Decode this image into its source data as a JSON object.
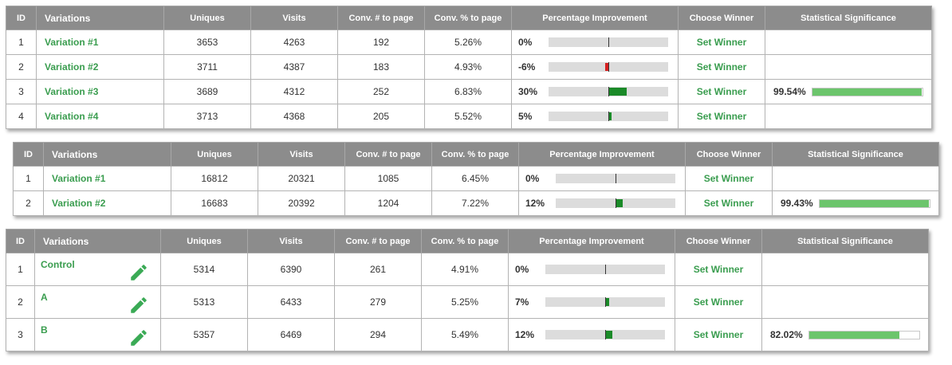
{
  "colors": {
    "positive": "#1a8a28",
    "negative": "#d62222",
    "significance": "#6cc56c",
    "name": "#3a9d4f",
    "header": "#8c8c8c"
  },
  "tables": [
    {
      "headers": {
        "id": "ID",
        "variations": "Variations",
        "uniques": "Uniques",
        "visits": "Visits",
        "conv_count": "Conv. # to page",
        "conv_pct": "Conv. % to page",
        "improvement": "Percentage Improvement",
        "winner": "Choose Winner",
        "significance": "Statistical Significance"
      },
      "rows": [
        {
          "id": "1",
          "name": "Variation #1",
          "uniques": "3653",
          "visits": "4263",
          "conv_count": "192",
          "conv_pct": "5.26%",
          "improvement": "0%",
          "improvement_value": 0,
          "winner": "Set Winner",
          "significance": "",
          "significance_value": null
        },
        {
          "id": "2",
          "name": "Variation #2",
          "uniques": "3711",
          "visits": "4387",
          "conv_count": "183",
          "conv_pct": "4.93%",
          "improvement": "-6%",
          "improvement_value": -6,
          "winner": "Set Winner",
          "significance": "",
          "significance_value": null
        },
        {
          "id": "3",
          "name": "Variation #3",
          "uniques": "3689",
          "visits": "4312",
          "conv_count": "252",
          "conv_pct": "6.83%",
          "improvement": "30%",
          "improvement_value": 30,
          "winner": "Set Winner",
          "significance": "99.54%",
          "significance_value": 99.54
        },
        {
          "id": "4",
          "name": "Variation #4",
          "uniques": "3713",
          "visits": "4368",
          "conv_count": "205",
          "conv_pct": "5.52%",
          "improvement": "5%",
          "improvement_value": 5,
          "winner": "Set Winner",
          "significance": "",
          "significance_value": null
        }
      ]
    },
    {
      "headers": {
        "id": "ID",
        "variations": "Variations",
        "uniques": "Uniques",
        "visits": "Visits",
        "conv_count": "Conv. # to page",
        "conv_pct": "Conv. % to page",
        "improvement": "Percentage Improvement",
        "winner": "Choose Winner",
        "significance": "Statistical Significance"
      },
      "rows": [
        {
          "id": "1",
          "name": "Variation #1",
          "uniques": "16812",
          "visits": "20321",
          "conv_count": "1085",
          "conv_pct": "6.45%",
          "improvement": "0%",
          "improvement_value": 0,
          "winner": "Set Winner",
          "significance": "",
          "significance_value": null
        },
        {
          "id": "2",
          "name": "Variation #2",
          "uniques": "16683",
          "visits": "20392",
          "conv_count": "1204",
          "conv_pct": "7.22%",
          "improvement": "12%",
          "improvement_value": 12,
          "winner": "Set Winner",
          "significance": "99.43%",
          "significance_value": 99.43
        }
      ]
    },
    {
      "headers": {
        "id": "ID",
        "variations": "Variations",
        "uniques": "Uniques",
        "visits": "Visits",
        "conv_count": "Conv. # to page",
        "conv_pct": "Conv. % to page",
        "improvement": "Percentage Improvement",
        "winner": "Choose Winner",
        "significance": "Statistical Significance"
      },
      "rows": [
        {
          "id": "1",
          "name": "Control",
          "uniques": "5314",
          "visits": "6390",
          "conv_count": "261",
          "conv_pct": "4.91%",
          "improvement": "0%",
          "improvement_value": 0,
          "winner": "Set Winner",
          "significance": "",
          "significance_value": null,
          "edit_icon": "pencil-icon"
        },
        {
          "id": "2",
          "name": "A",
          "uniques": "5313",
          "visits": "6433",
          "conv_count": "279",
          "conv_pct": "5.25%",
          "improvement": "7%",
          "improvement_value": 7,
          "winner": "Set Winner",
          "significance": "",
          "significance_value": null,
          "edit_icon": "pencil-icon"
        },
        {
          "id": "3",
          "name": "B",
          "uniques": "5357",
          "visits": "6469",
          "conv_count": "294",
          "conv_pct": "5.49%",
          "improvement": "12%",
          "improvement_value": 12,
          "winner": "Set Winner",
          "significance": "82.02%",
          "significance_value": 82.02,
          "edit_icon": "pencil-icon"
        }
      ]
    }
  ]
}
